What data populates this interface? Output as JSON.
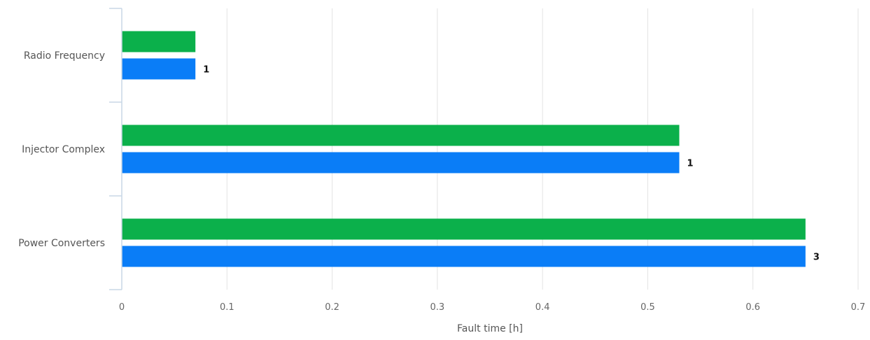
{
  "chart_data": {
    "type": "bar",
    "orientation": "horizontal",
    "categories": [
      "Radio Frequency",
      "Injector Complex",
      "Power Converters"
    ],
    "series": [
      {
        "values": [
          0.07,
          0.53,
          0.65
        ],
        "color": "#0bb04b"
      },
      {
        "values": [
          0.07,
          0.53,
          0.65
        ],
        "color": "#0a7df7",
        "data_labels": [
          "1",
          "1",
          "3"
        ]
      }
    ],
    "xlabel": "Fault time [h]",
    "xlim": [
      0,
      0.7
    ],
    "x_ticks": [
      "0",
      "0.1",
      "0.2",
      "0.3",
      "0.4",
      "0.5",
      "0.6",
      "0.7"
    ],
    "grid": "vertical",
    "legend": "none"
  }
}
